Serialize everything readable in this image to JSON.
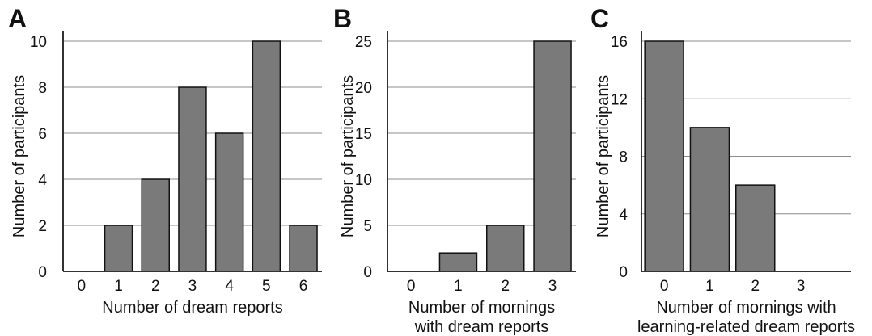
{
  "chart_data": [
    {
      "panel": "A",
      "type": "bar",
      "categories": [
        "0",
        "1",
        "2",
        "3",
        "4",
        "5",
        "6"
      ],
      "values": [
        0,
        2,
        4,
        8,
        6,
        10,
        2
      ],
      "ylim": [
        0,
        10
      ],
      "yticks": [
        "0",
        "2",
        "4",
        "6",
        "8",
        "10"
      ],
      "xlabel_lines": [
        "Number of dream reports"
      ],
      "ylabel": "Number of participants",
      "grid": true,
      "bar_color": "#7a7a7a"
    },
    {
      "panel": "B",
      "type": "bar",
      "categories": [
        "0",
        "1",
        "2",
        "3"
      ],
      "values": [
        0,
        2,
        5,
        25
      ],
      "ylim": [
        0,
        25
      ],
      "yticks": [
        "0",
        "5",
        "10",
        "15",
        "20",
        "25"
      ],
      "xlabel_lines": [
        "Number of mornings",
        "with dream reports"
      ],
      "ylabel": "Number of participants",
      "grid": true,
      "bar_color": "#7a7a7a"
    },
    {
      "panel": "C",
      "type": "bar",
      "categories": [
        "0",
        "1",
        "2",
        "3"
      ],
      "values": [
        16,
        10,
        6,
        0
      ],
      "ylim": [
        0,
        16
      ],
      "yticks": [
        "0",
        "4",
        "8",
        "12",
        "16"
      ],
      "xlabel_lines": [
        "Number of mornings with",
        "learning-related dream reports"
      ],
      "ylabel": "Number of participants",
      "grid": true,
      "bar_color": "#7a7a7a"
    }
  ]
}
